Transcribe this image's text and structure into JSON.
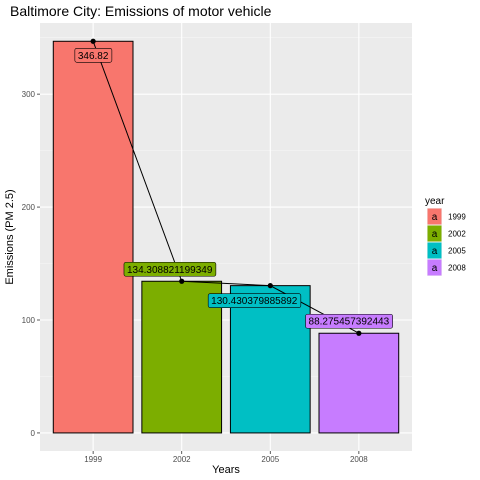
{
  "chart_data": {
    "type": "bar",
    "title": "Baltimore City: Emissions of motor vehicle",
    "xlabel": "Years",
    "ylabel": "Emissions (PM 2.5)",
    "categories": [
      "1999",
      "2002",
      "2005",
      "2008"
    ],
    "values": [
      346.82,
      134.308821199349,
      130.430379885892,
      88.275457392443
    ],
    "data_labels": [
      "346.82",
      "134.308821199349",
      "130.430379885892",
      "88.275457392443"
    ],
    "ylim": [
      -16,
      363
    ],
    "yticks": [
      0,
      100,
      200,
      300
    ],
    "ytick_labels": [
      "0",
      "100",
      "200",
      "300"
    ],
    "grid": true,
    "overlay": "line-with-points",
    "colors": [
      "#F8766D",
      "#7CAE00",
      "#00BFC4",
      "#C77CFF"
    ],
    "legend": {
      "title": "year",
      "position": "right",
      "key_glyph": "a",
      "entries": [
        "1999",
        "2002",
        "2005",
        "2008"
      ]
    }
  }
}
